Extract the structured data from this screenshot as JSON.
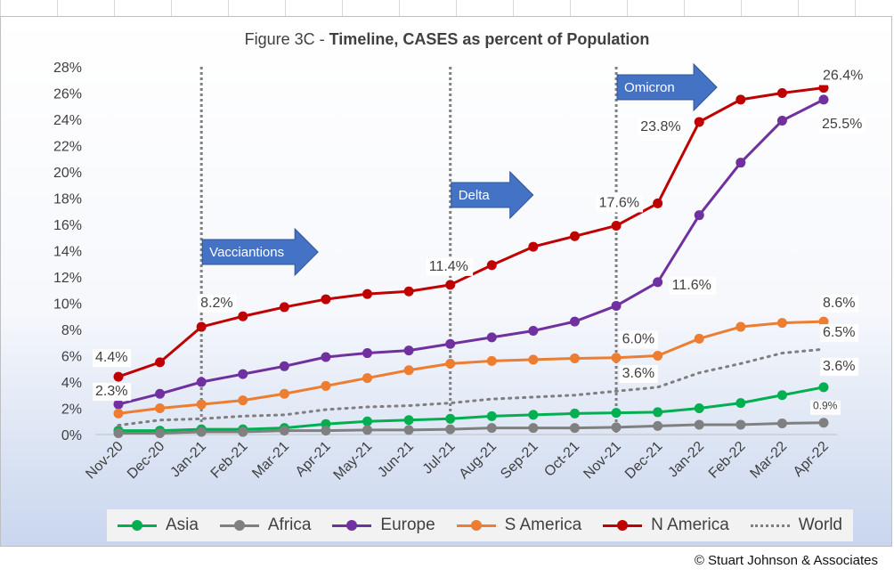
{
  "chart_data": {
    "type": "line",
    "title_prefix": "Figure 3C - ",
    "title_bold": "Timeline, CASES as percent of Population",
    "xlabel": "",
    "ylabel": "",
    "ylim": [
      0,
      28
    ],
    "y_ticks": [
      "0%",
      "2%",
      "4%",
      "6%",
      "8%",
      "10%",
      "12%",
      "14%",
      "16%",
      "18%",
      "20%",
      "22%",
      "24%",
      "26%",
      "28%"
    ],
    "categories": [
      "Nov-20",
      "Dec-20",
      "Jan-21",
      "Feb-21",
      "Mar-21",
      "Apr-21",
      "May-21",
      "Jun-21",
      "Jul-21",
      "Aug-21",
      "Sep-21",
      "Oct-21",
      "Nov-21",
      "Dec-21",
      "Jan-22",
      "Feb-22",
      "Mar-22",
      "Apr-22"
    ],
    "series": [
      {
        "name": "Asia",
        "color": "#00b050",
        "style": "solid",
        "values": [
          0.3,
          0.3,
          0.4,
          0.4,
          0.5,
          0.8,
          1.0,
          1.1,
          1.2,
          1.4,
          1.5,
          1.6,
          1.65,
          1.7,
          2.0,
          2.4,
          3.0,
          3.6
        ]
      },
      {
        "name": "Africa",
        "color": "#808080",
        "style": "solid",
        "values": [
          0.1,
          0.1,
          0.2,
          0.2,
          0.3,
          0.3,
          0.35,
          0.35,
          0.4,
          0.5,
          0.5,
          0.5,
          0.55,
          0.65,
          0.75,
          0.75,
          0.85,
          0.9
        ]
      },
      {
        "name": "Europe",
        "color": "#7030a0",
        "style": "solid",
        "values": [
          2.3,
          3.1,
          4.0,
          4.6,
          5.2,
          5.9,
          6.2,
          6.4,
          6.9,
          7.4,
          7.9,
          8.6,
          9.8,
          11.6,
          16.7,
          20.7,
          23.9,
          25.5
        ]
      },
      {
        "name": "S America",
        "color": "#ed7d31",
        "style": "solid",
        "values": [
          1.6,
          2.0,
          2.3,
          2.6,
          3.1,
          3.7,
          4.3,
          4.9,
          5.4,
          5.6,
          5.7,
          5.8,
          5.85,
          6.0,
          7.3,
          8.2,
          8.5,
          8.6
        ]
      },
      {
        "name": "N America",
        "color": "#c00000",
        "style": "solid",
        "values": [
          4.4,
          5.5,
          8.2,
          9.0,
          9.7,
          10.3,
          10.7,
          10.9,
          11.4,
          12.9,
          14.3,
          15.1,
          15.9,
          17.6,
          23.8,
          25.5,
          26.0,
          26.4
        ]
      },
      {
        "name": "World",
        "color": "#7f7f7f",
        "style": "dotted",
        "values": [
          0.7,
          1.1,
          1.2,
          1.4,
          1.5,
          1.9,
          2.1,
          2.2,
          2.4,
          2.7,
          2.85,
          3.0,
          3.3,
          3.6,
          4.7,
          5.4,
          6.2,
          6.5
        ]
      }
    ],
    "data_labels": [
      {
        "series": "N America",
        "index": 0,
        "text": "4.4%"
      },
      {
        "series": "Europe",
        "index": 0,
        "text": "2.3%"
      },
      {
        "series": "N America",
        "index": 2,
        "text": "8.2%"
      },
      {
        "series": "N America",
        "index": 8,
        "text": "11.4%"
      },
      {
        "series": "N America",
        "index": 13,
        "text": "17.6%"
      },
      {
        "series": "N America",
        "index": 14,
        "text": "23.8%"
      },
      {
        "series": "N America",
        "index": 17,
        "text": "26.4%"
      },
      {
        "series": "Europe",
        "index": 13,
        "text": "11.6%"
      },
      {
        "series": "Europe",
        "index": 17,
        "text": "25.5%"
      },
      {
        "series": "S America",
        "index": 13,
        "text": "6.0%"
      },
      {
        "series": "S America",
        "index": 17,
        "text": "8.6%"
      },
      {
        "series": "World",
        "index": 13,
        "text": "3.6%"
      },
      {
        "series": "World",
        "index": 17,
        "text": "6.5%"
      },
      {
        "series": "Asia",
        "index": 17,
        "text": "3.6%"
      },
      {
        "series": "Africa",
        "index": 17,
        "text": "0.9%"
      }
    ],
    "annotations": [
      {
        "text": "Vacciantions",
        "category_index": 2
      },
      {
        "text": "Delta",
        "category_index": 8
      },
      {
        "text": "Omicron",
        "category_index": 12
      }
    ],
    "legend": {
      "position": "bottom"
    },
    "grid": false,
    "accent_arrow_color": "#4472c4"
  },
  "credit": "© Stuart Johnson & Associates"
}
